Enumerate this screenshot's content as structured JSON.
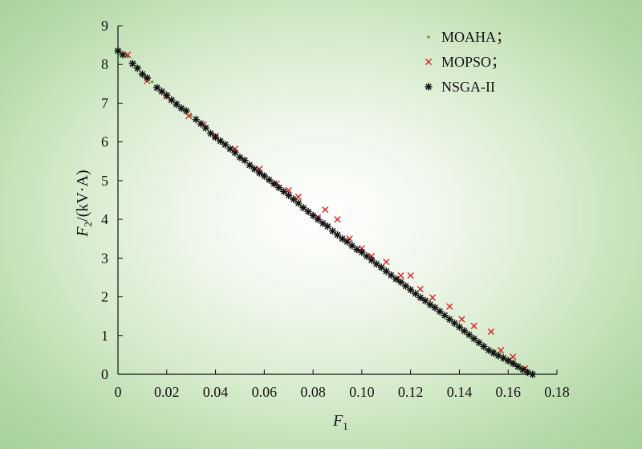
{
  "chart_data": {
    "type": "scatter",
    "xlabel": {
      "main": "F",
      "sub": "1"
    },
    "ylabel": {
      "main": "F",
      "sub": "2",
      "suffix": "/(kV·A)"
    },
    "x_ticks": [
      "0",
      "0.02",
      "0.04",
      "0.06",
      "0.08",
      "0.10",
      "0.12",
      "0.14",
      "0.16",
      "0.18"
    ],
    "y_ticks": [
      "0",
      "1",
      "2",
      "3",
      "4",
      "5",
      "6",
      "7",
      "8",
      "9"
    ],
    "xlim": [
      0,
      0.18
    ],
    "ylim": [
      0,
      9
    ],
    "grid": false,
    "legend_position": "top-right",
    "series": [
      {
        "name": "MOAHA；",
        "marker": "dot",
        "color": "#3a9a2a",
        "points": [
          [
            0.0005,
            8.35
          ],
          [
            0.004,
            8.2
          ],
          [
            0.008,
            7.95
          ],
          [
            0.011,
            7.7
          ],
          [
            0.014,
            7.55
          ],
          [
            0.018,
            7.3
          ],
          [
            0.024,
            7.02
          ],
          [
            0.03,
            6.68
          ],
          [
            0.036,
            6.35
          ],
          [
            0.042,
            6.05
          ],
          [
            0.048,
            5.72
          ],
          [
            0.055,
            5.35
          ],
          [
            0.062,
            5.0
          ],
          [
            0.068,
            4.7
          ],
          [
            0.075,
            4.35
          ],
          [
            0.082,
            4.0
          ],
          [
            0.09,
            3.6
          ],
          [
            0.098,
            3.22
          ],
          [
            0.106,
            2.85
          ],
          [
            0.114,
            2.45
          ],
          [
            0.122,
            2.08
          ],
          [
            0.13,
            1.72
          ],
          [
            0.138,
            1.32
          ],
          [
            0.146,
            0.92
          ],
          [
            0.154,
            0.62
          ],
          [
            0.162,
            0.32
          ],
          [
            0.168,
            0.08
          ],
          [
            0.17,
            0.0
          ]
        ]
      },
      {
        "name": "MOPSO；",
        "marker": "x",
        "color": "#e02020",
        "points": [
          [
            0.004,
            8.25
          ],
          [
            0.012,
            7.58
          ],
          [
            0.02,
            7.18
          ],
          [
            0.029,
            6.67
          ],
          [
            0.035,
            6.45
          ],
          [
            0.04,
            6.15
          ],
          [
            0.048,
            5.82
          ],
          [
            0.058,
            5.3
          ],
          [
            0.065,
            4.92
          ],
          [
            0.07,
            4.75
          ],
          [
            0.074,
            4.58
          ],
          [
            0.082,
            4.05
          ],
          [
            0.085,
            4.25
          ],
          [
            0.09,
            4.0
          ],
          [
            0.095,
            3.5
          ],
          [
            0.1,
            3.25
          ],
          [
            0.104,
            3.05
          ],
          [
            0.11,
            2.9
          ],
          [
            0.116,
            2.55
          ],
          [
            0.12,
            2.55
          ],
          [
            0.124,
            2.2
          ],
          [
            0.129,
            1.98
          ],
          [
            0.136,
            1.75
          ],
          [
            0.141,
            1.42
          ],
          [
            0.146,
            1.25
          ],
          [
            0.153,
            1.1
          ],
          [
            0.157,
            0.62
          ],
          [
            0.162,
            0.45
          ],
          [
            0.167,
            0.15
          ]
        ]
      },
      {
        "name": "NSGA-II",
        "marker": "asterisk",
        "color": "#111111",
        "points": [
          [
            0.0,
            8.35
          ],
          [
            0.002,
            8.25
          ],
          [
            0.006,
            8.02
          ],
          [
            0.008,
            7.9
          ],
          [
            0.01,
            7.75
          ],
          [
            0.012,
            7.65
          ],
          [
            0.016,
            7.4
          ],
          [
            0.018,
            7.3
          ],
          [
            0.02,
            7.2
          ],
          [
            0.022,
            7.08
          ],
          [
            0.024,
            6.97
          ],
          [
            0.026,
            6.87
          ],
          [
            0.028,
            6.8
          ],
          [
            0.032,
            6.58
          ],
          [
            0.034,
            6.47
          ],
          [
            0.036,
            6.36
          ],
          [
            0.038,
            6.22
          ],
          [
            0.04,
            6.12
          ],
          [
            0.042,
            6.02
          ],
          [
            0.044,
            5.93
          ],
          [
            0.046,
            5.82
          ],
          [
            0.048,
            5.72
          ],
          [
            0.05,
            5.6
          ],
          [
            0.052,
            5.52
          ],
          [
            0.054,
            5.4
          ],
          [
            0.056,
            5.3
          ],
          [
            0.058,
            5.2
          ],
          [
            0.06,
            5.12
          ],
          [
            0.062,
            5.02
          ],
          [
            0.064,
            4.92
          ],
          [
            0.066,
            4.82
          ],
          [
            0.068,
            4.72
          ],
          [
            0.07,
            4.62
          ],
          [
            0.072,
            4.52
          ],
          [
            0.074,
            4.42
          ],
          [
            0.076,
            4.3
          ],
          [
            0.078,
            4.2
          ],
          [
            0.08,
            4.1
          ],
          [
            0.082,
            4.0
          ],
          [
            0.084,
            3.9
          ],
          [
            0.086,
            3.82
          ],
          [
            0.088,
            3.7
          ],
          [
            0.09,
            3.6
          ],
          [
            0.092,
            3.5
          ],
          [
            0.094,
            3.42
          ],
          [
            0.096,
            3.32
          ],
          [
            0.098,
            3.22
          ],
          [
            0.1,
            3.15
          ],
          [
            0.102,
            3.05
          ],
          [
            0.104,
            2.95
          ],
          [
            0.106,
            2.85
          ],
          [
            0.108,
            2.76
          ],
          [
            0.11,
            2.66
          ],
          [
            0.112,
            2.56
          ],
          [
            0.114,
            2.46
          ],
          [
            0.116,
            2.38
          ],
          [
            0.118,
            2.28
          ],
          [
            0.12,
            2.18
          ],
          [
            0.122,
            2.08
          ],
          [
            0.124,
            1.98
          ],
          [
            0.126,
            1.9
          ],
          [
            0.128,
            1.8
          ],
          [
            0.13,
            1.72
          ],
          [
            0.132,
            1.62
          ],
          [
            0.134,
            1.52
          ],
          [
            0.136,
            1.42
          ],
          [
            0.138,
            1.32
          ],
          [
            0.14,
            1.22
          ],
          [
            0.142,
            1.12
          ],
          [
            0.144,
            1.02
          ],
          [
            0.146,
            0.92
          ],
          [
            0.148,
            0.82
          ],
          [
            0.15,
            0.72
          ],
          [
            0.152,
            0.62
          ],
          [
            0.154,
            0.55
          ],
          [
            0.156,
            0.48
          ],
          [
            0.158,
            0.42
          ],
          [
            0.16,
            0.35
          ],
          [
            0.162,
            0.28
          ],
          [
            0.164,
            0.2
          ],
          [
            0.166,
            0.12
          ],
          [
            0.168,
            0.05
          ],
          [
            0.17,
            0.0
          ]
        ]
      }
    ]
  }
}
